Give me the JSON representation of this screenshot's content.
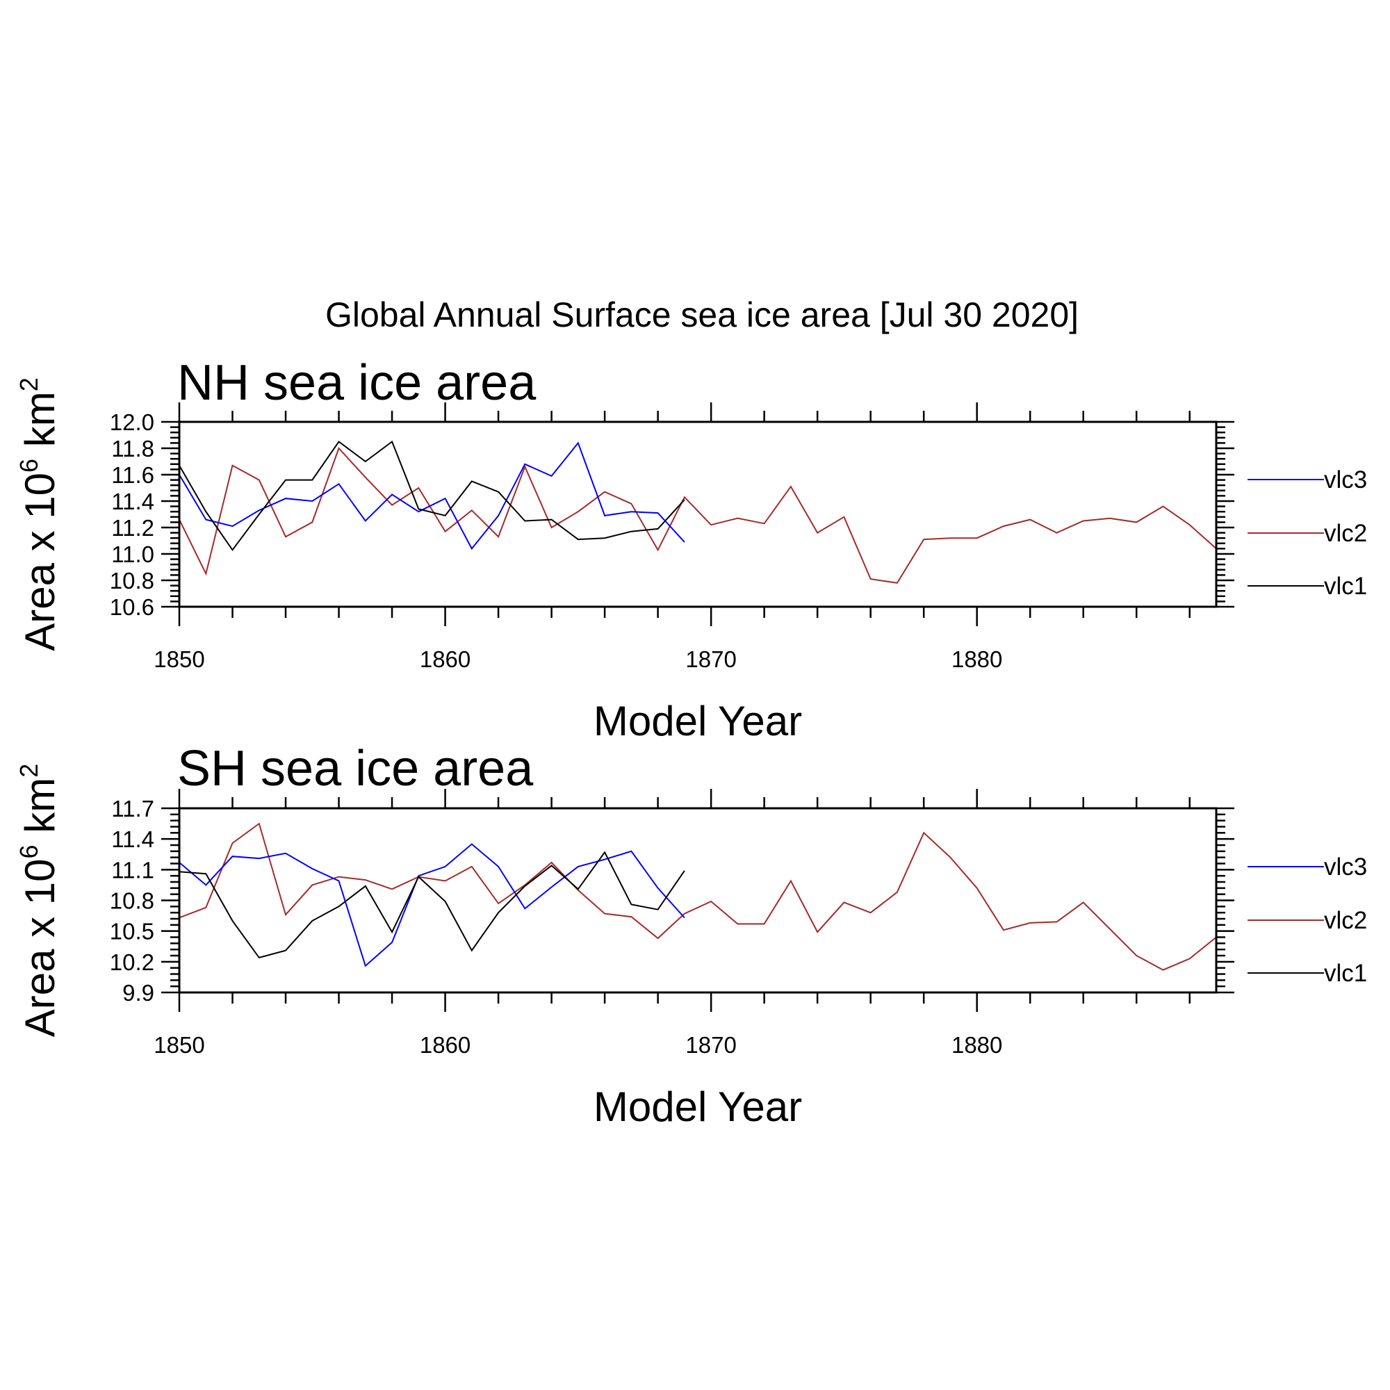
{
  "title": "Global Annual Surface sea ice area [Jul 30 2020]",
  "colors": {
    "vlc3": "#0000ff",
    "vlc2": "#a52a2a",
    "vlc1": "#000000"
  },
  "chart_data": [
    {
      "type": "line",
      "title": "NH sea ice area",
      "xlabel": "Model Year",
      "ylabel_text": "Area x 10",
      "ylabel_sup": "6",
      "ylabel_unit": "km",
      "ylabel_sup2": "2",
      "xlim": [
        1850,
        1889
      ],
      "ylim": [
        10.6,
        12.0
      ],
      "xticks": [
        1850,
        1860,
        1870,
        1880
      ],
      "yticks": [
        "10.6",
        "10.8",
        "11.0",
        "11.2",
        "11.4",
        "11.6",
        "11.8",
        "12.0"
      ],
      "legend": [
        "vlc3",
        "vlc2",
        "vlc1"
      ],
      "series": [
        {
          "name": "vlc3",
          "x_start": 1850,
          "values": [
            11.6,
            11.26,
            11.21,
            11.33,
            11.42,
            11.4,
            11.53,
            11.25,
            11.45,
            11.32,
            11.42,
            11.04,
            11.29,
            11.68,
            11.59,
            11.84,
            11.29,
            11.32,
            11.31,
            11.09
          ]
        },
        {
          "name": "vlc2",
          "x_start": 1850,
          "values": [
            11.26,
            10.85,
            11.67,
            11.56,
            11.13,
            11.24,
            11.8,
            11.58,
            11.37,
            11.5,
            11.17,
            11.33,
            11.13,
            11.66,
            11.2,
            11.32,
            11.47,
            11.38,
            11.03,
            11.43,
            11.22,
            11.27,
            11.23,
            11.51,
            11.16,
            11.28,
            10.81,
            10.78,
            11.11,
            11.12,
            11.12,
            11.21,
            11.26,
            11.16,
            11.25,
            11.27,
            11.24,
            11.36,
            11.22,
            11.04
          ]
        },
        {
          "name": "vlc1",
          "x_start": 1850,
          "values": [
            11.67,
            11.32,
            11.03,
            11.3,
            11.56,
            11.56,
            11.85,
            11.7,
            11.85,
            11.34,
            11.29,
            11.55,
            11.47,
            11.25,
            11.26,
            11.11,
            11.12,
            11.17,
            11.19,
            11.41
          ]
        }
      ]
    },
    {
      "type": "line",
      "title": "SH sea ice area",
      "xlabel": "Model Year",
      "ylabel_text": "Area x 10",
      "ylabel_sup": "6",
      "ylabel_unit": "km",
      "ylabel_sup2": "2",
      "xlim": [
        1850,
        1889
      ],
      "ylim": [
        9.9,
        11.7
      ],
      "xticks": [
        1850,
        1860,
        1870,
        1880
      ],
      "yticks": [
        "9.9",
        "10.2",
        "10.5",
        "10.8",
        "11.1",
        "11.4",
        "11.7"
      ],
      "legend": [
        "vlc3",
        "vlc2",
        "vlc1"
      ],
      "series": [
        {
          "name": "vlc3",
          "x_start": 1850,
          "values": [
            11.17,
            10.95,
            11.23,
            11.21,
            11.26,
            11.11,
            10.99,
            10.16,
            10.39,
            11.04,
            11.13,
            11.35,
            11.13,
            10.72,
            10.93,
            11.13,
            11.2,
            11.28,
            10.92,
            10.63
          ]
        },
        {
          "name": "vlc2",
          "x_start": 1850,
          "values": [
            10.63,
            10.73,
            11.36,
            11.55,
            10.66,
            10.95,
            11.03,
            11.0,
            10.91,
            11.03,
            10.99,
            11.13,
            10.77,
            10.95,
            11.17,
            10.9,
            10.67,
            10.64,
            10.43,
            10.67,
            10.79,
            10.57,
            10.57,
            10.99,
            10.49,
            10.78,
            10.68,
            10.88,
            11.46,
            11.22,
            10.92,
            10.51,
            10.58,
            10.59,
            10.78,
            10.52,
            10.26,
            10.12,
            10.23,
            10.44
          ]
        },
        {
          "name": "vlc1",
          "x_start": 1850,
          "values": [
            11.08,
            11.06,
            10.6,
            10.24,
            10.31,
            10.6,
            10.74,
            10.94,
            10.49,
            11.03,
            10.79,
            10.31,
            10.68,
            10.94,
            11.14,
            10.91,
            11.27,
            10.76,
            10.71,
            11.09
          ]
        }
      ]
    }
  ]
}
